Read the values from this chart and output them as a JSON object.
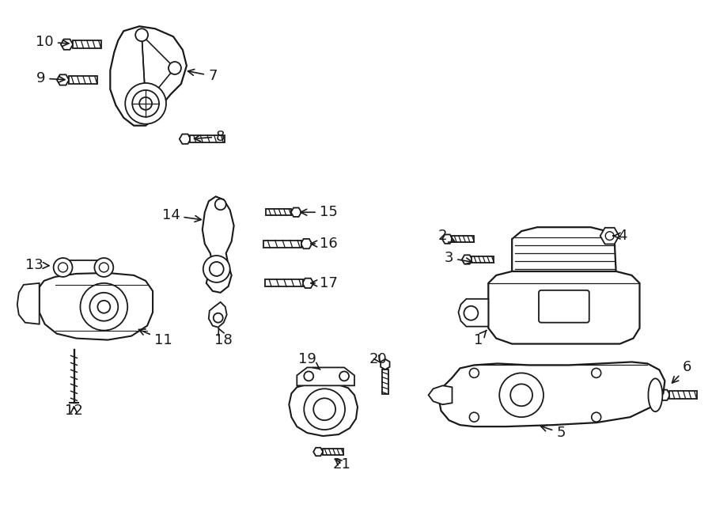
{
  "background_color": "#ffffff",
  "line_color": "#1a1a1a",
  "figsize": [
    9.0,
    6.61
  ],
  "dpi": 100,
  "lw": 1.3
}
